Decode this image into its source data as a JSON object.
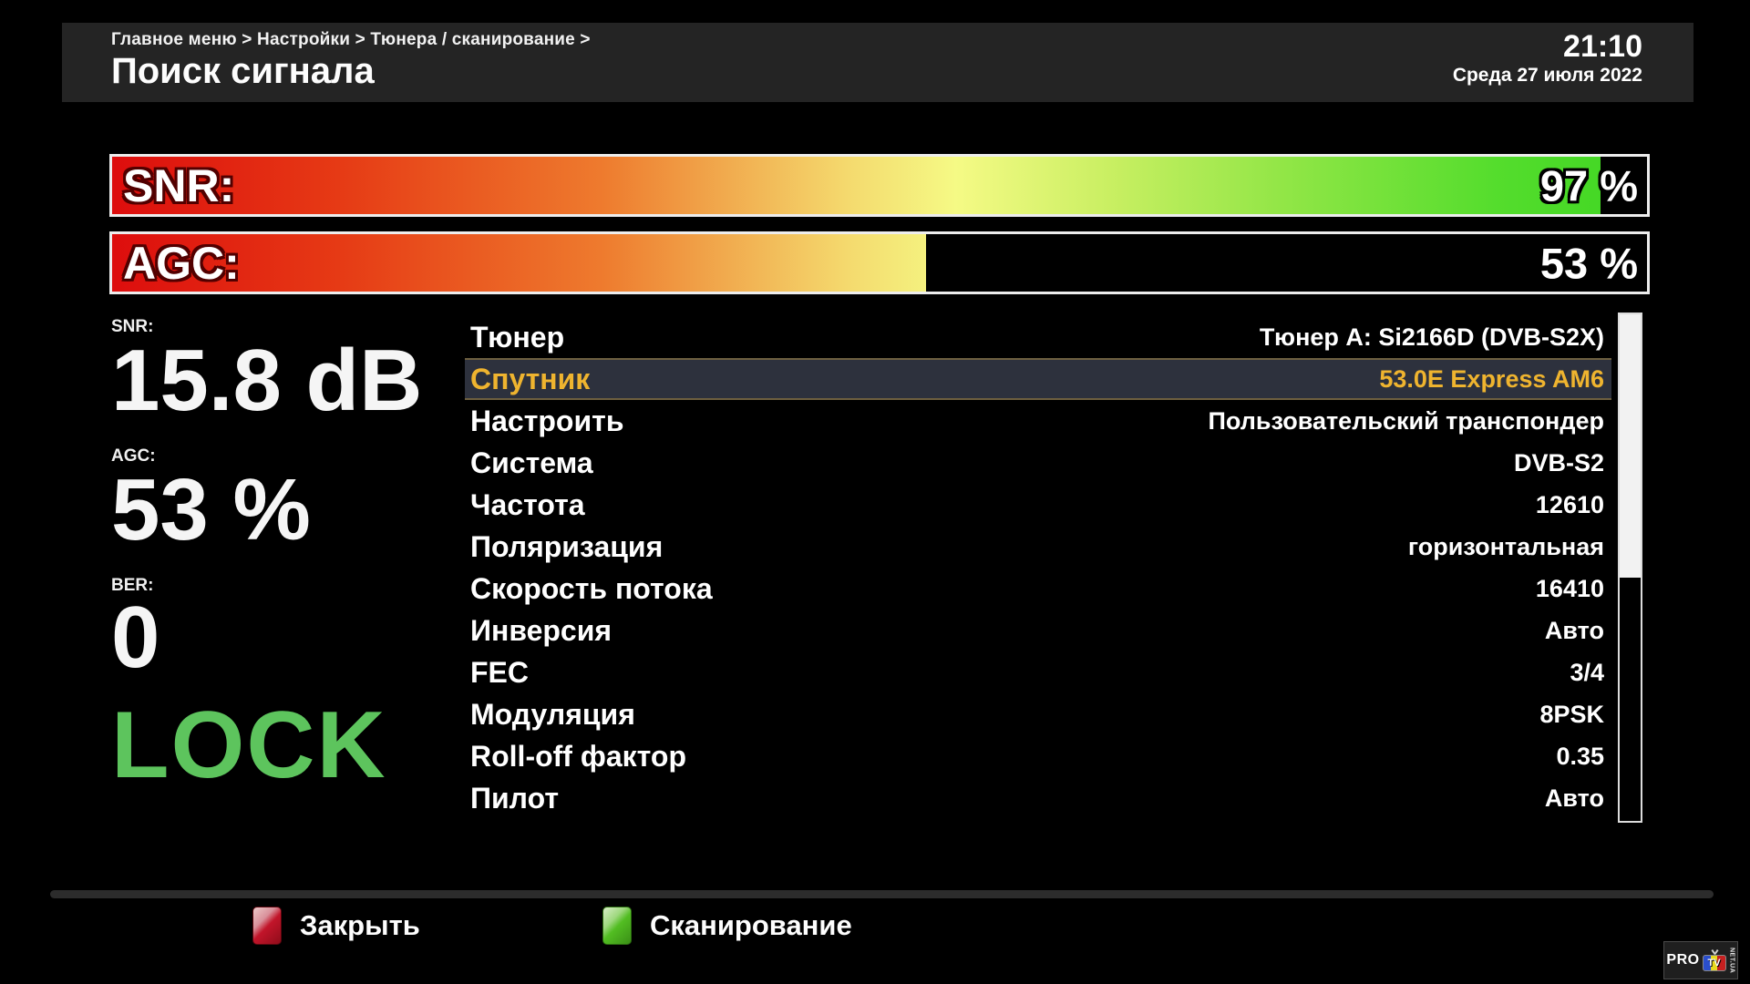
{
  "header": {
    "breadcrumb": "Главное меню > Настройки > Тюнера / сканирование >",
    "title": "Поиск сигнала",
    "time": "21:10",
    "date": "Среда 27 июля 2022"
  },
  "signal_bars": [
    {
      "id": "snr",
      "label": "SNR:",
      "value": 97,
      "value_text": "97 %"
    },
    {
      "id": "agc",
      "label": "AGC:",
      "value": 53,
      "value_text": "53 %"
    }
  ],
  "readouts": {
    "snr_label": "SNR:",
    "snr_value": "15.8 dB",
    "agc_label": "AGC:",
    "agc_value": "53 %",
    "ber_label": "BER:",
    "ber_value": "0",
    "lock_status": "LOCK"
  },
  "menu": {
    "items": [
      {
        "key": "tuner",
        "label": "Тюнер",
        "value": "Тюнер A: Si2166D (DVB-S2X)",
        "selected": false
      },
      {
        "key": "satellite",
        "label": "Спутник",
        "value": "53.0E Express AM6",
        "selected": true
      },
      {
        "key": "configure",
        "label": "Настроить",
        "value": "Пользовательский транспондер",
        "selected": false
      },
      {
        "key": "system",
        "label": "Система",
        "value": "DVB-S2",
        "selected": false
      },
      {
        "key": "frequency",
        "label": "Частота",
        "value": "12610",
        "selected": false
      },
      {
        "key": "polarization",
        "label": "Поляризация",
        "value": "горизонтальная",
        "selected": false
      },
      {
        "key": "symbol-rate",
        "label": "Скорость потока",
        "value": "16410",
        "selected": false
      },
      {
        "key": "inversion",
        "label": "Инверсия",
        "value": "Авто",
        "selected": false
      },
      {
        "key": "fec",
        "label": "FEC",
        "value": "3/4",
        "selected": false
      },
      {
        "key": "modulation",
        "label": "Модуляция",
        "value": "8PSK",
        "selected": false
      },
      {
        "key": "rolloff",
        "label": "Roll-off фактор",
        "value": "0.35",
        "selected": false
      },
      {
        "key": "pilot",
        "label": "Пилот",
        "value": "Авто",
        "selected": false
      }
    ]
  },
  "footer": {
    "buttons": [
      {
        "name": "close-button",
        "icon": "red-button-icon",
        "color": "#c2152a",
        "label": "Закрыть"
      },
      {
        "name": "scan-button",
        "icon": "green-button-icon",
        "color": "#52bd22",
        "label": "Сканирование"
      }
    ]
  },
  "logo": {
    "pro": "PRO",
    "tv": "TV",
    "sub": "NET.UA"
  },
  "colors": {
    "lock_green": "#5dc45d",
    "selected_text": "#efb42f",
    "selected_bg": "#2d313d",
    "header_bg": "#242424",
    "bar_gradient_start": "#dd0d0d",
    "bar_gradient_mid": "#f5fa85",
    "bar_gradient_end": "#3ed622"
  }
}
